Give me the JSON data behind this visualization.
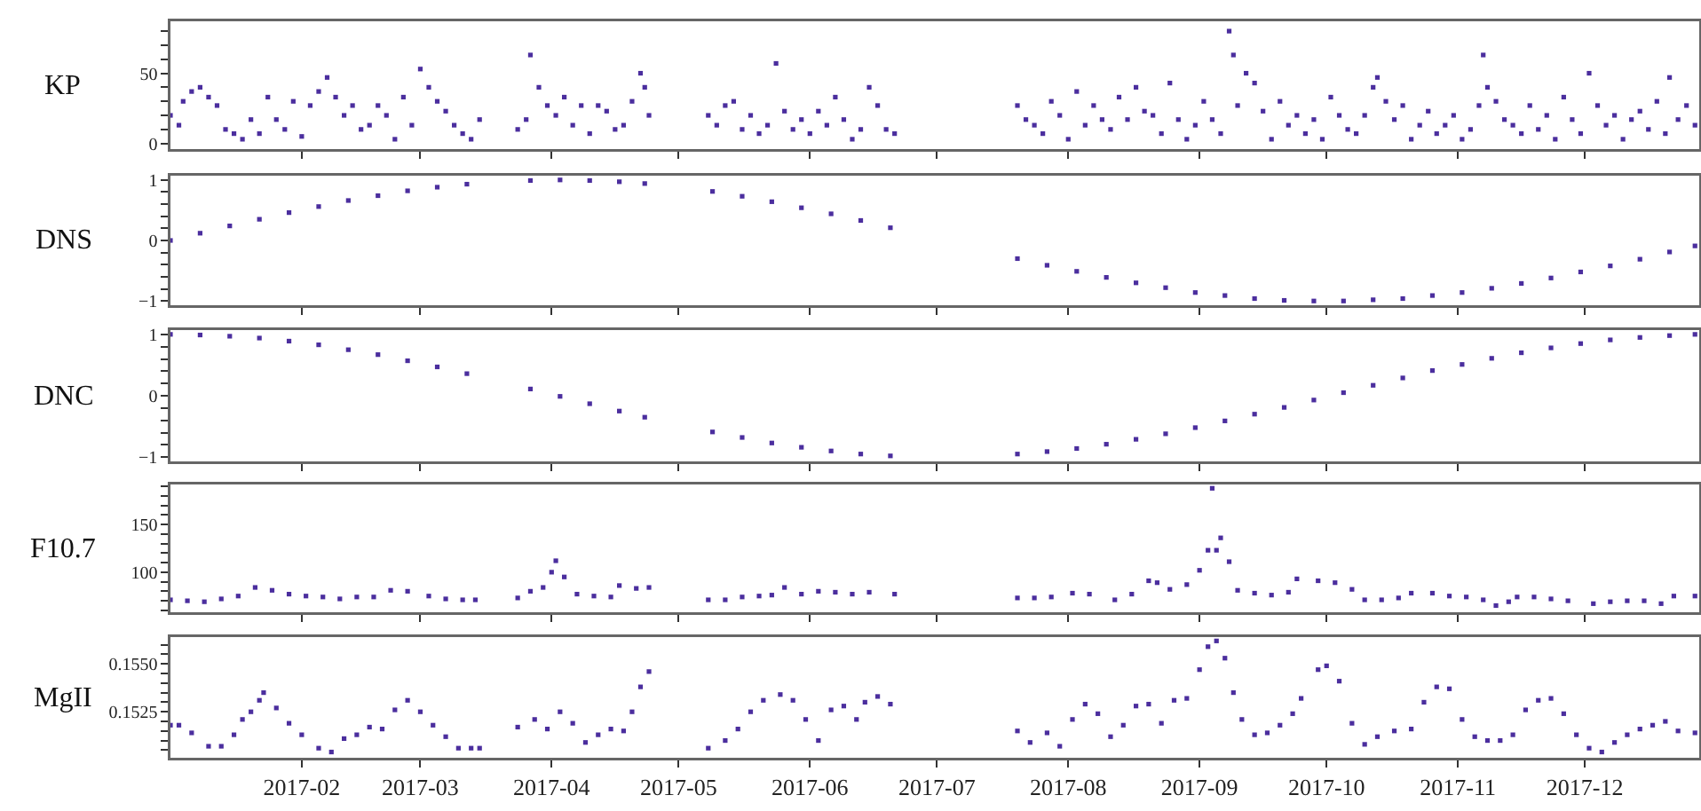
{
  "chart_data": [
    {
      "type": "scatter",
      "ylabel": "KP",
      "marker": "square",
      "tick_labels": "y",
      "xlim": [
        "2017-01-01",
        "2017-12-28"
      ],
      "xticks": [
        {
          "value": "2017-02",
          "label": null
        },
        {
          "value": "2017-03",
          "label": null
        },
        {
          "value": "2017-04",
          "label": null
        },
        {
          "value": "2017-05",
          "label": null
        },
        {
          "value": "2017-06",
          "label": null
        },
        {
          "value": "2017-07",
          "label": null
        },
        {
          "value": "2017-08",
          "label": null
        },
        {
          "value": "2017-09",
          "label": null
        },
        {
          "value": "2017-10",
          "label": null
        },
        {
          "value": "2017-11",
          "label": null
        },
        {
          "value": "2017-12",
          "label": null
        }
      ],
      "ylim": [
        -4,
        87
      ],
      "yticks": [
        0,
        {
          "value": 10,
          "label": null
        },
        {
          "value": 20,
          "label": null
        },
        {
          "value": 30,
          "label": null
        },
        {
          "value": 40,
          "label": null
        },
        50,
        {
          "value": 60,
          "label": null
        },
        {
          "value": 70,
          "label": null
        },
        {
          "value": 80,
          "label": null
        }
      ],
      "x": [
        "2017-01-01",
        "2017-01-03",
        "2017-01-04",
        "2017-01-06",
        "2017-01-08",
        "2017-01-10",
        "2017-01-12",
        "2017-01-14",
        "2017-01-16",
        "2017-01-18",
        "2017-01-20",
        "2017-01-22",
        "2017-01-24",
        "2017-01-26",
        "2017-01-28",
        "2017-01-30",
        "2017-02-01",
        "2017-02-03",
        "2017-02-05",
        "2017-02-07",
        "2017-02-09",
        "2017-02-11",
        "2017-02-13",
        "2017-02-15",
        "2017-02-17",
        "2017-02-19",
        "2017-02-21",
        "2017-02-23",
        "2017-02-25",
        "2017-02-27",
        "2017-03-01",
        "2017-03-03",
        "2017-03-05",
        "2017-03-07",
        "2017-03-09",
        "2017-03-11",
        "2017-03-13",
        "2017-03-15",
        "2017-03-24",
        "2017-03-26",
        "2017-03-27",
        "2017-03-29",
        "2017-03-31",
        "2017-04-02",
        "2017-04-04",
        "2017-04-06",
        "2017-04-08",
        "2017-04-10",
        "2017-04-12",
        "2017-04-14",
        "2017-04-16",
        "2017-04-18",
        "2017-04-20",
        "2017-04-22",
        "2017-04-23",
        "2017-04-24",
        "2017-05-08",
        "2017-05-10",
        "2017-05-12",
        "2017-05-14",
        "2017-05-16",
        "2017-05-18",
        "2017-05-20",
        "2017-05-22",
        "2017-05-24",
        "2017-05-26",
        "2017-05-28",
        "2017-05-30",
        "2017-06-01",
        "2017-06-03",
        "2017-06-05",
        "2017-06-07",
        "2017-06-09",
        "2017-06-11",
        "2017-06-13",
        "2017-06-15",
        "2017-06-17",
        "2017-06-19",
        "2017-06-21",
        "2017-07-20",
        "2017-07-22",
        "2017-07-24",
        "2017-07-26",
        "2017-07-28",
        "2017-07-30",
        "2017-08-01",
        "2017-08-03",
        "2017-08-05",
        "2017-08-07",
        "2017-08-09",
        "2017-08-11",
        "2017-08-13",
        "2017-08-15",
        "2017-08-17",
        "2017-08-19",
        "2017-08-21",
        "2017-08-23",
        "2017-08-25",
        "2017-08-27",
        "2017-08-29",
        "2017-08-31",
        "2017-09-02",
        "2017-09-04",
        "2017-09-06",
        "2017-09-08",
        "2017-09-09",
        "2017-09-10",
        "2017-09-12",
        "2017-09-14",
        "2017-09-16",
        "2017-09-18",
        "2017-09-20",
        "2017-09-22",
        "2017-09-24",
        "2017-09-26",
        "2017-09-28",
        "2017-09-30",
        "2017-10-02",
        "2017-10-04",
        "2017-10-06",
        "2017-10-08",
        "2017-10-10",
        "2017-10-12",
        "2017-10-13",
        "2017-10-15",
        "2017-10-17",
        "2017-10-19",
        "2017-10-21",
        "2017-10-23",
        "2017-10-25",
        "2017-10-27",
        "2017-10-29",
        "2017-10-31",
        "2017-11-02",
        "2017-11-04",
        "2017-11-06",
        "2017-11-07",
        "2017-11-08",
        "2017-11-10",
        "2017-11-12",
        "2017-11-14",
        "2017-11-16",
        "2017-11-18",
        "2017-11-20",
        "2017-11-22",
        "2017-11-24",
        "2017-11-26",
        "2017-11-28",
        "2017-11-30",
        "2017-12-02",
        "2017-12-04",
        "2017-12-06",
        "2017-12-08",
        "2017-12-10",
        "2017-12-12",
        "2017-12-14",
        "2017-12-16",
        "2017-12-18",
        "2017-12-20",
        "2017-12-21",
        "2017-12-23",
        "2017-12-25",
        "2017-12-27"
      ],
      "series": [
        {
          "color": "#4b2e9e",
          "values": [
            20,
            13,
            30,
            37,
            40,
            33,
            27,
            10,
            7,
            3,
            17,
            7,
            33,
            17,
            10,
            30,
            5,
            27,
            37,
            47,
            33,
            20,
            27,
            10,
            13,
            27,
            20,
            3,
            33,
            13,
            53,
            40,
            30,
            23,
            13,
            7,
            3,
            17,
            10,
            17,
            63,
            40,
            27,
            20,
            33,
            13,
            27,
            7,
            27,
            23,
            10,
            13,
            30,
            50,
            40,
            20,
            20,
            13,
            27,
            30,
            10,
            20,
            7,
            13,
            57,
            23,
            10,
            17,
            7,
            23,
            13,
            33,
            17,
            3,
            10,
            40,
            27,
            10,
            7,
            27,
            17,
            13,
            7,
            30,
            20,
            3,
            37,
            13,
            27,
            17,
            10,
            33,
            17,
            40,
            23,
            20,
            7,
            43,
            17,
            3,
            13,
            30,
            17,
            7,
            80,
            63,
            27,
            50,
            43,
            23,
            3,
            30,
            13,
            20,
            7,
            17,
            3,
            33,
            20,
            10,
            7,
            20,
            40,
            47,
            30,
            17,
            27,
            3,
            13,
            23,
            7,
            13,
            20,
            3,
            10,
            27,
            63,
            40,
            30,
            17,
            13,
            7,
            27,
            10,
            20,
            3,
            33,
            17,
            7,
            50,
            27,
            13,
            20,
            3,
            17,
            23,
            10,
            30,
            7,
            47,
            17,
            27,
            13
          ]
        }
      ]
    },
    {
      "type": "scatter",
      "ylabel": "DNS",
      "marker": "square",
      "tick_labels": "y",
      "xlim": [
        "2017-01-01",
        "2017-12-28"
      ],
      "xticks": [
        {
          "value": "2017-02",
          "label": null
        },
        {
          "value": "2017-03",
          "label": null
        },
        {
          "value": "2017-04",
          "label": null
        },
        {
          "value": "2017-05",
          "label": null
        },
        {
          "value": "2017-06",
          "label": null
        },
        {
          "value": "2017-07",
          "label": null
        },
        {
          "value": "2017-08",
          "label": null
        },
        {
          "value": "2017-09",
          "label": null
        },
        {
          "value": "2017-10",
          "label": null
        },
        {
          "value": "2017-11",
          "label": null
        },
        {
          "value": "2017-12",
          "label": null
        }
      ],
      "ylim": [
        -1.07,
        1.07
      ],
      "yticks": [
        {
          "value": -1,
          "label": "−1"
        },
        {
          "value": -0.8,
          "label": null
        },
        {
          "value": -0.6,
          "label": null
        },
        {
          "value": -0.4,
          "label": null
        },
        {
          "value": -0.2,
          "label": null
        },
        0,
        {
          "value": 0.2,
          "label": null
        },
        {
          "value": 0.4,
          "label": null
        },
        {
          "value": 0.6,
          "label": null
        },
        {
          "value": 0.8,
          "label": null
        },
        1
      ],
      "x": [
        "2017-01-01",
        "2017-01-08",
        "2017-01-15",
        "2017-01-22",
        "2017-01-29",
        "2017-02-05",
        "2017-02-12",
        "2017-02-19",
        "2017-02-26",
        "2017-03-05",
        "2017-03-12",
        "2017-03-27",
        "2017-04-03",
        "2017-04-10",
        "2017-04-17",
        "2017-04-23",
        "2017-05-09",
        "2017-05-16",
        "2017-05-23",
        "2017-05-30",
        "2017-06-06",
        "2017-06-13",
        "2017-06-20",
        "2017-07-20",
        "2017-07-27",
        "2017-08-03",
        "2017-08-10",
        "2017-08-17",
        "2017-08-24",
        "2017-08-31",
        "2017-09-07",
        "2017-09-14",
        "2017-09-21",
        "2017-09-28",
        "2017-10-05",
        "2017-10-12",
        "2017-10-19",
        "2017-10-26",
        "2017-11-02",
        "2017-11-09",
        "2017-11-16",
        "2017-11-23",
        "2017-11-30",
        "2017-12-07",
        "2017-12-14",
        "2017-12-21",
        "2017-12-27"
      ],
      "series": [
        {
          "color": "#4b2e9e",
          "values": [
            0.0,
            0.12,
            0.24,
            0.35,
            0.46,
            0.56,
            0.66,
            0.74,
            0.82,
            0.88,
            0.93,
            0.99,
            1.0,
            0.99,
            0.97,
            0.94,
            0.81,
            0.73,
            0.64,
            0.54,
            0.44,
            0.33,
            0.21,
            -0.3,
            -0.41,
            -0.51,
            -0.61,
            -0.7,
            -0.78,
            -0.86,
            -0.91,
            -0.96,
            -0.99,
            -1.0,
            -1.0,
            -0.98,
            -0.96,
            -0.91,
            -0.86,
            -0.79,
            -0.71,
            -0.62,
            -0.52,
            -0.42,
            -0.31,
            -0.19,
            -0.09
          ]
        }
      ]
    },
    {
      "type": "scatter",
      "ylabel": "DNC",
      "marker": "square",
      "tick_labels": "y",
      "xlim": [
        "2017-01-01",
        "2017-12-28"
      ],
      "xticks": [
        {
          "value": "2017-02",
          "label": null
        },
        {
          "value": "2017-03",
          "label": null
        },
        {
          "value": "2017-04",
          "label": null
        },
        {
          "value": "2017-05",
          "label": null
        },
        {
          "value": "2017-06",
          "label": null
        },
        {
          "value": "2017-07",
          "label": null
        },
        {
          "value": "2017-08",
          "label": null
        },
        {
          "value": "2017-09",
          "label": null
        },
        {
          "value": "2017-10",
          "label": null
        },
        {
          "value": "2017-11",
          "label": null
        },
        {
          "value": "2017-12",
          "label": null
        }
      ],
      "ylim": [
        -1.07,
        1.07
      ],
      "yticks": [
        {
          "value": -1,
          "label": "−1"
        },
        {
          "value": -0.8,
          "label": null
        },
        {
          "value": -0.6,
          "label": null
        },
        {
          "value": -0.4,
          "label": null
        },
        {
          "value": -0.2,
          "label": null
        },
        0,
        {
          "value": 0.2,
          "label": null
        },
        {
          "value": 0.4,
          "label": null
        },
        {
          "value": 0.6,
          "label": null
        },
        {
          "value": 0.8,
          "label": null
        },
        1
      ],
      "x": [
        "2017-01-01",
        "2017-01-08",
        "2017-01-15",
        "2017-01-22",
        "2017-01-29",
        "2017-02-05",
        "2017-02-12",
        "2017-02-19",
        "2017-02-26",
        "2017-03-05",
        "2017-03-12",
        "2017-03-27",
        "2017-04-03",
        "2017-04-10",
        "2017-04-17",
        "2017-04-23",
        "2017-05-09",
        "2017-05-16",
        "2017-05-23",
        "2017-05-30",
        "2017-06-06",
        "2017-06-13",
        "2017-06-20",
        "2017-07-20",
        "2017-07-27",
        "2017-08-03",
        "2017-08-10",
        "2017-08-17",
        "2017-08-24",
        "2017-08-31",
        "2017-09-07",
        "2017-09-14",
        "2017-09-21",
        "2017-09-28",
        "2017-10-05",
        "2017-10-12",
        "2017-10-19",
        "2017-10-26",
        "2017-11-02",
        "2017-11-09",
        "2017-11-16",
        "2017-11-23",
        "2017-11-30",
        "2017-12-07",
        "2017-12-14",
        "2017-12-21",
        "2017-12-27"
      ],
      "series": [
        {
          "color": "#4b2e9e",
          "values": [
            1.0,
            0.99,
            0.97,
            0.94,
            0.89,
            0.83,
            0.75,
            0.67,
            0.57,
            0.47,
            0.36,
            0.11,
            -0.01,
            -0.13,
            -0.25,
            -0.35,
            -0.59,
            -0.68,
            -0.77,
            -0.84,
            -0.9,
            -0.95,
            -0.98,
            -0.95,
            -0.91,
            -0.86,
            -0.79,
            -0.71,
            -0.62,
            -0.52,
            -0.41,
            -0.3,
            -0.19,
            -0.07,
            0.05,
            0.17,
            0.29,
            0.41,
            0.51,
            0.61,
            0.7,
            0.78,
            0.85,
            0.91,
            0.95,
            0.98,
            1.0
          ]
        }
      ]
    },
    {
      "type": "scatter",
      "ylabel": "F10.7",
      "marker": "square",
      "tick_labels": "y",
      "xlim": [
        "2017-01-01",
        "2017-12-28"
      ],
      "xticks": [
        {
          "value": "2017-02",
          "label": null
        },
        {
          "value": "2017-03",
          "label": null
        },
        {
          "value": "2017-04",
          "label": null
        },
        {
          "value": "2017-05",
          "label": null
        },
        {
          "value": "2017-06",
          "label": null
        },
        {
          "value": "2017-07",
          "label": null
        },
        {
          "value": "2017-08",
          "label": null
        },
        {
          "value": "2017-09",
          "label": null
        },
        {
          "value": "2017-10",
          "label": null
        },
        {
          "value": "2017-11",
          "label": null
        },
        {
          "value": "2017-12",
          "label": null
        }
      ],
      "ylim": [
        58,
        192
      ],
      "yticks": [
        {
          "value": 60,
          "label": null
        },
        {
          "value": 70,
          "label": null
        },
        {
          "value": 80,
          "label": null
        },
        {
          "value": 90,
          "label": null
        },
        100,
        {
          "value": 110,
          "label": null
        },
        {
          "value": 120,
          "label": null
        },
        {
          "value": 130,
          "label": null
        },
        {
          "value": 140,
          "label": null
        },
        150,
        {
          "value": 160,
          "label": null
        },
        {
          "value": 170,
          "label": null
        },
        {
          "value": 180,
          "label": null
        },
        {
          "value": 190,
          "label": null
        }
      ],
      "x": [
        "2017-01-01",
        "2017-01-05",
        "2017-01-09",
        "2017-01-13",
        "2017-01-17",
        "2017-01-21",
        "2017-01-25",
        "2017-01-29",
        "2017-02-02",
        "2017-02-06",
        "2017-02-10",
        "2017-02-14",
        "2017-02-18",
        "2017-02-22",
        "2017-02-26",
        "2017-03-03",
        "2017-03-07",
        "2017-03-11",
        "2017-03-14",
        "2017-03-24",
        "2017-03-27",
        "2017-03-30",
        "2017-04-01",
        "2017-04-02",
        "2017-04-04",
        "2017-04-07",
        "2017-04-11",
        "2017-04-15",
        "2017-04-17",
        "2017-04-21",
        "2017-04-24",
        "2017-05-08",
        "2017-05-12",
        "2017-05-16",
        "2017-05-20",
        "2017-05-23",
        "2017-05-26",
        "2017-05-30",
        "2017-06-03",
        "2017-06-07",
        "2017-06-11",
        "2017-06-15",
        "2017-06-21",
        "2017-07-20",
        "2017-07-24",
        "2017-07-28",
        "2017-08-02",
        "2017-08-06",
        "2017-08-12",
        "2017-08-16",
        "2017-08-20",
        "2017-08-22",
        "2017-08-25",
        "2017-08-29",
        "2017-09-01",
        "2017-09-03",
        "2017-09-04",
        "2017-09-05",
        "2017-09-06",
        "2017-09-08",
        "2017-09-10",
        "2017-09-14",
        "2017-09-18",
        "2017-09-22",
        "2017-09-24",
        "2017-09-29",
        "2017-10-03",
        "2017-10-07",
        "2017-10-10",
        "2017-10-14",
        "2017-10-18",
        "2017-10-21",
        "2017-10-26",
        "2017-10-30",
        "2017-11-03",
        "2017-11-07",
        "2017-11-10",
        "2017-11-13",
        "2017-11-15",
        "2017-11-19",
        "2017-11-23",
        "2017-11-27",
        "2017-12-03",
        "2017-12-07",
        "2017-12-11",
        "2017-12-15",
        "2017-12-19",
        "2017-12-22",
        "2017-12-27"
      ],
      "series": [
        {
          "color": "#4b2e9e",
          "values": [
            71,
            70,
            69,
            72,
            75,
            84,
            81,
            77,
            75,
            74,
            72,
            74,
            74,
            81,
            80,
            75,
            72,
            71,
            71,
            73,
            80,
            84,
            100,
            112,
            95,
            77,
            75,
            74,
            86,
            83,
            84,
            71,
            71,
            74,
            75,
            76,
            84,
            77,
            80,
            79,
            77,
            79,
            77,
            73,
            73,
            74,
            78,
            77,
            71,
            77,
            91,
            89,
            82,
            87,
            102,
            123,
            188,
            123,
            136,
            111,
            81,
            78,
            76,
            79,
            93,
            91,
            89,
            82,
            71,
            71,
            73,
            78,
            78,
            75,
            74,
            71,
            65,
            69,
            74,
            74,
            72,
            70,
            67,
            69,
            70,
            70,
            67,
            75,
            75
          ]
        }
      ]
    },
    {
      "type": "scatter",
      "ylabel": "MgII",
      "marker": "square",
      "xlim": [
        "2017-01-01",
        "2017-12-28"
      ],
      "xticks": [
        {
          "value": "2017-02",
          "label": "2017-02"
        },
        {
          "value": "2017-03",
          "label": "2017-03"
        },
        {
          "value": "2017-04",
          "label": "2017-04"
        },
        {
          "value": "2017-05",
          "label": "2017-05"
        },
        {
          "value": "2017-06",
          "label": "2017-06"
        },
        {
          "value": "2017-07",
          "label": "2017-07"
        },
        {
          "value": "2017-08",
          "label": "2017-08"
        },
        {
          "value": "2017-09",
          "label": "2017-09"
        },
        {
          "value": "2017-10",
          "label": "2017-10"
        },
        {
          "value": "2017-11",
          "label": "2017-11"
        },
        {
          "value": "2017-12",
          "label": "2017-12"
        }
      ],
      "ylim": [
        0.1501,
        0.1564
      ],
      "yticks": [
        {
          "value": 0.1505,
          "label": null
        },
        {
          "value": 0.151,
          "label": null
        },
        {
          "value": 0.1515,
          "label": null
        },
        {
          "value": 0.152,
          "label": null
        },
        {
          "value": 0.1525,
          "label": "0.1525"
        },
        {
          "value": 0.153,
          "label": null
        },
        {
          "value": 0.1535,
          "label": null
        },
        {
          "value": 0.154,
          "label": null
        },
        {
          "value": 0.1545,
          "label": null
        },
        {
          "value": 0.155,
          "label": "0.1550"
        },
        {
          "value": 0.1555,
          "label": null
        },
        {
          "value": 0.156,
          "label": null
        }
      ],
      "x": [
        "2017-01-01",
        "2017-01-03",
        "2017-01-06",
        "2017-01-10",
        "2017-01-13",
        "2017-01-16",
        "2017-01-18",
        "2017-01-20",
        "2017-01-22",
        "2017-01-23",
        "2017-01-26",
        "2017-01-29",
        "2017-02-01",
        "2017-02-05",
        "2017-02-08",
        "2017-02-11",
        "2017-02-14",
        "2017-02-17",
        "2017-02-20",
        "2017-02-23",
        "2017-02-26",
        "2017-03-01",
        "2017-03-04",
        "2017-03-07",
        "2017-03-10",
        "2017-03-13",
        "2017-03-15",
        "2017-03-24",
        "2017-03-28",
        "2017-03-31",
        "2017-04-03",
        "2017-04-06",
        "2017-04-09",
        "2017-04-12",
        "2017-04-15",
        "2017-04-18",
        "2017-04-20",
        "2017-04-22",
        "2017-04-24",
        "2017-05-08",
        "2017-05-12",
        "2017-05-15",
        "2017-05-18",
        "2017-05-21",
        "2017-05-25",
        "2017-05-28",
        "2017-05-31",
        "2017-06-03",
        "2017-06-06",
        "2017-06-09",
        "2017-06-12",
        "2017-06-14",
        "2017-06-17",
        "2017-06-20",
        "2017-07-20",
        "2017-07-23",
        "2017-07-27",
        "2017-07-30",
        "2017-08-02",
        "2017-08-05",
        "2017-08-08",
        "2017-08-11",
        "2017-08-14",
        "2017-08-17",
        "2017-08-20",
        "2017-08-23",
        "2017-08-26",
        "2017-08-29",
        "2017-09-01",
        "2017-09-03",
        "2017-09-05",
        "2017-09-07",
        "2017-09-09",
        "2017-09-11",
        "2017-09-14",
        "2017-09-17",
        "2017-09-20",
        "2017-09-23",
        "2017-09-25",
        "2017-09-29",
        "2017-10-01",
        "2017-10-04",
        "2017-10-07",
        "2017-10-10",
        "2017-10-13",
        "2017-10-17",
        "2017-10-21",
        "2017-10-24",
        "2017-10-27",
        "2017-10-30",
        "2017-11-02",
        "2017-11-05",
        "2017-11-08",
        "2017-11-11",
        "2017-11-14",
        "2017-11-17",
        "2017-11-20",
        "2017-11-23",
        "2017-11-26",
        "2017-11-29",
        "2017-12-02",
        "2017-12-05",
        "2017-12-08",
        "2017-12-11",
        "2017-12-14",
        "2017-12-17",
        "2017-12-20",
        "2017-12-23",
        "2017-12-27"
      ],
      "series": [
        {
          "color": "#4b2e9e",
          "values": [
            0.1518,
            0.1518,
            0.1514,
            0.1507,
            0.1507,
            0.1513,
            0.1521,
            0.1525,
            0.1531,
            0.1535,
            0.1527,
            0.1519,
            0.1513,
            0.1506,
            0.1504,
            0.1511,
            0.1513,
            0.1517,
            0.1516,
            0.1526,
            0.1531,
            0.1525,
            0.1518,
            0.1512,
            0.1506,
            0.1506,
            0.1506,
            0.1517,
            0.1521,
            0.1516,
            0.1525,
            0.1519,
            0.1509,
            0.1513,
            0.1516,
            0.1515,
            0.1525,
            0.1538,
            0.1546,
            0.1506,
            0.151,
            0.1516,
            0.1525,
            0.1531,
            0.1534,
            0.1531,
            0.1521,
            0.151,
            0.1526,
            0.1528,
            0.1521,
            0.153,
            0.1533,
            0.1529,
            0.1515,
            0.1509,
            0.1514,
            0.1507,
            0.1521,
            0.1529,
            0.1524,
            0.1512,
            0.1518,
            0.1528,
            0.1529,
            0.1519,
            0.1531,
            0.1532,
            0.1547,
            0.1559,
            0.1562,
            0.1553,
            0.1535,
            0.1521,
            0.1513,
            0.1514,
            0.1518,
            0.1524,
            0.1532,
            0.1547,
            0.1549,
            0.1541,
            0.1519,
            0.1508,
            0.1512,
            0.1515,
            0.1516,
            0.153,
            0.1538,
            0.1537,
            0.1521,
            0.1512,
            0.151,
            0.151,
            0.1513,
            0.1526,
            0.1531,
            0.1532,
            0.1524,
            0.1513,
            0.1506,
            0.1504,
            0.1509,
            0.1513,
            0.1516,
            0.1518,
            0.152,
            0.1515,
            0.1514
          ]
        }
      ]
    }
  ]
}
